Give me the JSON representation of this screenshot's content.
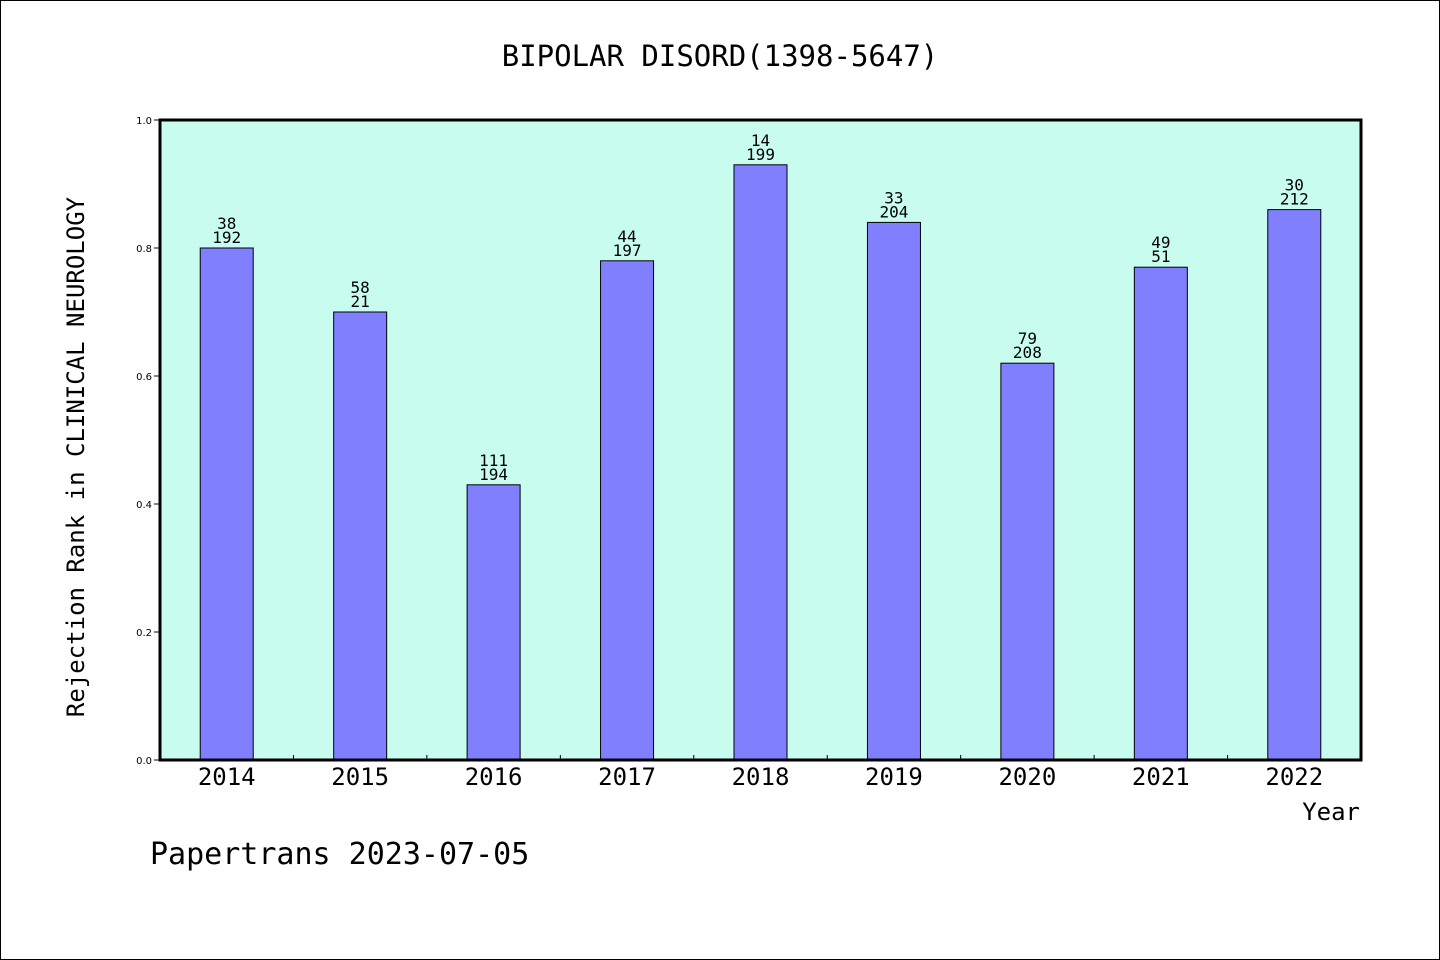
{
  "chart_data": {
    "type": "bar",
    "title": "BIPOLAR DISORD(1398-5647)",
    "xlabel": "Year",
    "ylabel": "Rejection Rank in CLINICAL NEUROLOGY",
    "categories": [
      "2014",
      "2015",
      "2016",
      "2017",
      "2018",
      "2019",
      "2020",
      "2021",
      "2022"
    ],
    "values": [
      0.8,
      0.7,
      0.43,
      0.78,
      0.93,
      0.84,
      0.62,
      0.77,
      0.86
    ],
    "label_top": [
      "38",
      "58",
      "111",
      "44",
      "14",
      "33",
      "79",
      "49",
      "30"
    ],
    "label_bottom": [
      "192",
      "21",
      "194",
      "197",
      "199",
      "204",
      "208",
      "51",
      "212"
    ],
    "ylim": [
      0,
      1.0
    ],
    "yticks": [
      "0.0",
      "0.2",
      "0.4",
      "0.6",
      "0.8",
      "1.0"
    ],
    "grid": false,
    "plot_background": "#c8fcee",
    "bar_color": "#8080ff"
  },
  "footer": {
    "watermark": "Papertrans 2023-07-05"
  }
}
